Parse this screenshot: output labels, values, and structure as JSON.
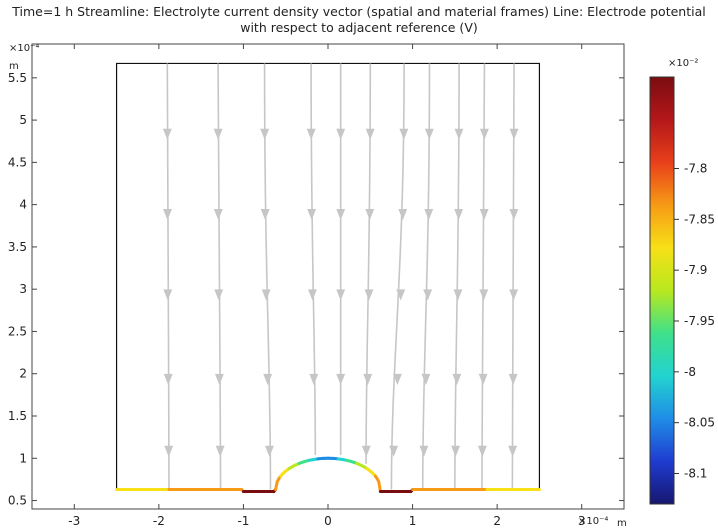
{
  "title_line1": "Time=1 h Streamline: Electrolyte current density vector (spatial and material frames)  Line: Electrode potential",
  "title_line2": "with respect to adjacent reference (V)",
  "chart_data": {
    "type": "streamline",
    "x_exponent": "×10⁻⁴",
    "x_unit": "m",
    "y_exponent": "×10⁻⁴",
    "y_unit": "m",
    "xlim": [
      -3.5,
      3.5
    ],
    "ylim": [
      0.4,
      5.9
    ],
    "x_ticks": [
      -3,
      -2,
      -1,
      0,
      1,
      2,
      3
    ],
    "x_tick_labels": [
      "-3",
      "-2",
      "-1",
      "0",
      "1",
      "2",
      "3"
    ],
    "y_ticks": [
      0.5,
      1,
      1.5,
      2,
      2.5,
      3,
      3.5,
      4,
      4.5,
      5,
      5.5
    ],
    "y_tick_labels": [
      "0.5",
      "1",
      "1.5",
      "2",
      "2.5",
      "3",
      "3.5",
      "4",
      "4.5",
      "5",
      "5.5"
    ],
    "domain_box": {
      "x": [
        -2.5,
        2.5
      ],
      "y": [
        0.63,
        5.67
      ]
    },
    "streamlines": [
      {
        "x_top": -1.9,
        "x_bottom": -1.88
      },
      {
        "x_top": -1.3,
        "x_bottom": -1.27
      },
      {
        "x_top": -0.75,
        "x_bottom": -0.68
      },
      {
        "x_top": -0.2,
        "x_bottom": -0.15
      },
      {
        "x_top": 0.15,
        "x_bottom": 0.15
      },
      {
        "x_top": 0.5,
        "x_bottom": 0.45
      },
      {
        "x_top": 0.9,
        "x_bottom": 0.75
      },
      {
        "x_top": 1.2,
        "x_bottom": 1.12
      },
      {
        "x_top": 1.55,
        "x_bottom": 1.5
      },
      {
        "x_top": 1.85,
        "x_bottom": 1.82
      },
      {
        "x_top": 2.2,
        "x_bottom": 2.18
      }
    ],
    "arrow_y_levels": [
      4.8,
      3.85,
      2.9,
      1.9,
      1.05
    ],
    "colorbar": {
      "exponent": "×10⁻²",
      "min": -8.13,
      "max": -7.71,
      "ticks": [
        -7.8,
        -7.85,
        -7.9,
        -7.95,
        -8,
        -8.05,
        -8.1
      ],
      "tick_labels": [
        "-7.8",
        "-7.85",
        "-7.9",
        "-7.95",
        "-8",
        "-8.05",
        "-8.1"
      ],
      "colormap": [
        "#16166e",
        "#1f3cd0",
        "#1f8de6",
        "#22d3d0",
        "#3fe08a",
        "#b8e81e",
        "#f7e017",
        "#f79a16",
        "#e8401a",
        "#b3171a",
        "#7a0d10"
      ]
    }
  }
}
